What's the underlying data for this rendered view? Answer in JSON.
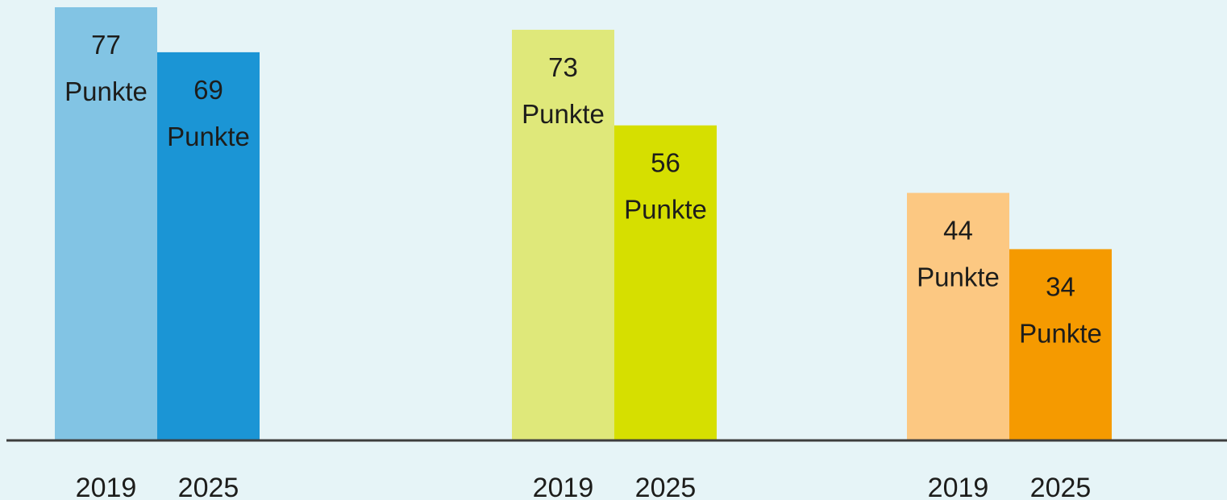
{
  "chart_data": {
    "type": "bar",
    "value_suffix": "Punkte",
    "ylim": [
      0,
      80
    ],
    "grid": false,
    "groups": [
      {
        "bars": [
          {
            "x": "2019",
            "value": 77,
            "color": "#82c4e4"
          },
          {
            "x": "2025",
            "value": 69,
            "color": "#1b95d5"
          }
        ]
      },
      {
        "bars": [
          {
            "x": "2019",
            "value": 73,
            "color": "#dfe87a"
          },
          {
            "x": "2025",
            "value": 56,
            "color": "#d6df00"
          }
        ]
      },
      {
        "bars": [
          {
            "x": "2019",
            "value": 44,
            "color": "#fcc882"
          },
          {
            "x": "2025",
            "value": 34,
            "color": "#f59a00"
          }
        ]
      }
    ],
    "axis_color": "#3d3d3d",
    "background": "#e6f4f7"
  }
}
